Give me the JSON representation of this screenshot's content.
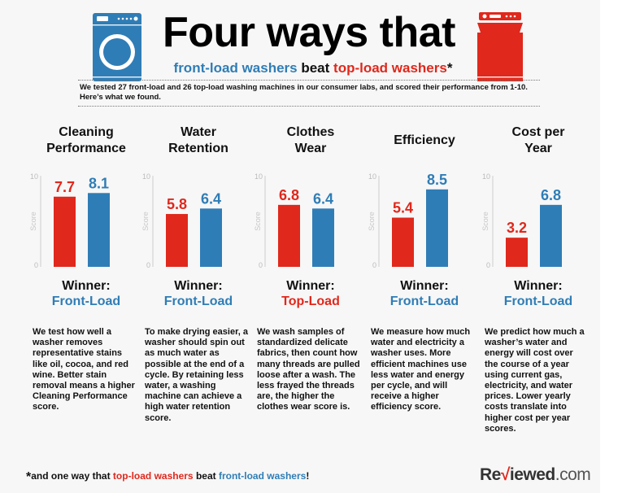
{
  "header": {
    "title": "Four ways that",
    "subtitle_front": "front-load washers",
    "subtitle_mid": " beat ",
    "subtitle_top": "top-load washers",
    "subtitle_star": "*",
    "intro": "We tested 27 front-load and 26 top-load washing machines in our consumer labs, and scored their performance from 1-10. Here’s what we found."
  },
  "colors": {
    "front": "#2f7db6",
    "top": "#e0281c",
    "axis": "#cccccc"
  },
  "categories": [
    {
      "title_line1": "Cleaning",
      "title_line2": "Performance",
      "top_label": "7.7",
      "front_label": "8.1",
      "winner_label": "Winner:",
      "winner": "Front-Load",
      "winner_type": "front",
      "description": "We test how well a washer removes representative stains like oil, cocoa, and red wine. Better stain removal means a higher Cleaning Performance score."
    },
    {
      "title_line1": "Water",
      "title_line2": "Retention",
      "top_label": "5.8",
      "front_label": "6.4",
      "winner_label": "Winner:",
      "winner": "Front-Load",
      "winner_type": "front",
      "description": "To make drying easier, a washer should spin out as much water as possible at the end of a cycle. By retaining less water, a washing machine can achieve a high water retention score."
    },
    {
      "title_line1": "Clothes",
      "title_line2": "Wear",
      "top_label": "6.8",
      "front_label": "6.4",
      "winner_label": "Winner:",
      "winner": "Top-Load",
      "winner_type": "top",
      "description": "We wash samples of standardized delicate fabrics, then count how many threads are pulled loose after a wash. The less frayed the threads are, the higher the clothes wear score is."
    },
    {
      "title_line1": "Efficiency",
      "title_line2": "",
      "top_label": "5.4",
      "front_label": "8.5",
      "winner_label": "Winner:",
      "winner": "Front-Load",
      "winner_type": "front",
      "description": "We measure how much water and electricity a washer uses. More efficient machines use less water and energy per cycle, and will receive a higher efficiency score."
    },
    {
      "title_line1": "Cost per",
      "title_line2": "Year",
      "top_label": "3.2",
      "front_label": "6.8",
      "winner_label": "Winner:",
      "winner": "Front-Load",
      "winner_type": "front",
      "description": "We predict how much a washer’s water and energy will cost over the course of a year using current gas, electricity, and water prices. Lower yearly costs translate into higher cost per year scores."
    }
  ],
  "chart_data": {
    "type": "bar",
    "title": "Four ways that front-load washers beat top-load washers",
    "categories": [
      "Cleaning Performance",
      "Water Retention",
      "Clothes Wear",
      "Efficiency",
      "Cost per Year"
    ],
    "series": [
      {
        "name": "Top-Load",
        "values": [
          7.7,
          5.8,
          6.8,
          5.4,
          3.2
        ]
      },
      {
        "name": "Front-Load",
        "values": [
          8.1,
          6.4,
          6.4,
          8.5,
          6.8
        ]
      }
    ],
    "ylabel": "Score",
    "ylim": [
      0,
      10
    ],
    "yticks": [
      "0",
      "10"
    ],
    "grid": false
  },
  "footer": {
    "star": "*",
    "text_pre": "and one way that ",
    "text_top": "top-load washers",
    "text_mid": " beat ",
    "text_front": "front-load washers",
    "text_end": "!",
    "logo_re": "Re",
    "logo_check": "√",
    "logo_iewed": "iewed",
    "logo_com": ".com"
  }
}
